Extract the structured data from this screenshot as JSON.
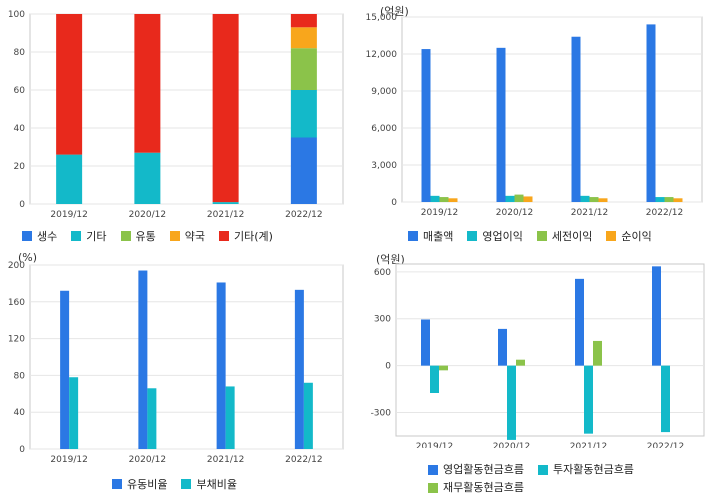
{
  "chart_data": [
    {
      "type": "bar",
      "stacked": true,
      "categories": [
        "2019/12",
        "2020/12",
        "2021/12",
        "2022/12"
      ],
      "ylim": [
        0,
        100
      ],
      "yticks": [
        0,
        20,
        40,
        60,
        80,
        100
      ],
      "unit": "",
      "series": [
        {
          "name": "생수",
          "color": "#2b78e4",
          "values": [
            0,
            0,
            0,
            35
          ]
        },
        {
          "name": "기타",
          "color": "#13b9c9",
          "values": [
            26,
            27,
            1,
            25
          ]
        },
        {
          "name": "유통",
          "color": "#8bc34a",
          "values": [
            0,
            0,
            0,
            22
          ]
        },
        {
          "name": "약국",
          "color": "#f8a61c",
          "values": [
            0,
            0,
            0,
            11
          ]
        },
        {
          "name": "기타(계)",
          "color": "#e8291c",
          "values": [
            74,
            73,
            99,
            7
          ]
        }
      ]
    },
    {
      "type": "bar",
      "categories": [
        "2019/12",
        "2020/12",
        "2021/12",
        "2022/12"
      ],
      "ylim": [
        0,
        15000
      ],
      "yticks": [
        0,
        3000,
        6000,
        9000,
        12000,
        15000
      ],
      "ytick_labels": [
        "0",
        "3,000",
        "6,000",
        "9,000",
        "12,000",
        "15,000"
      ],
      "unit": "(억원)",
      "series": [
        {
          "name": "매출액",
          "color": "#2b78e4",
          "values": [
            12400,
            12500,
            13400,
            14400
          ]
        },
        {
          "name": "영업이익",
          "color": "#13b9c9",
          "values": [
            500,
            500,
            500,
            400
          ]
        },
        {
          "name": "세전이익",
          "color": "#8bc34a",
          "values": [
            400,
            600,
            400,
            400
          ]
        },
        {
          "name": "순이익",
          "color": "#f8a61c",
          "values": [
            300,
            450,
            300,
            300
          ]
        }
      ]
    },
    {
      "type": "bar",
      "categories": [
        "2019/12",
        "2020/12",
        "2021/12",
        "2022/12"
      ],
      "ylim": [
        0,
        200
      ],
      "yticks": [
        0,
        40,
        80,
        120,
        160,
        200
      ],
      "unit": "(%)",
      "series": [
        {
          "name": "유동비율",
          "color": "#2b78e4",
          "values": [
            172,
            194,
            181,
            173
          ]
        },
        {
          "name": "부채비율",
          "color": "#13b9c9",
          "values": [
            78,
            66,
            68,
            72
          ]
        }
      ]
    },
    {
      "type": "bar",
      "categories": [
        "2019/12",
        "2020/12",
        "2021/12",
        "2022/12"
      ],
      "ylim": [
        -450,
        650
      ],
      "yticks": [
        -300,
        0,
        300,
        600
      ],
      "unit": "(억원)",
      "series": [
        {
          "name": "영업활동현금흐름",
          "color": "#2b78e4",
          "values": [
            295,
            235,
            555,
            635
          ]
        },
        {
          "name": "투자활동현금흐름",
          "color": "#13b9c9",
          "values": [
            -175,
            -475,
            -435,
            -425
          ]
        },
        {
          "name": "재무활동현금흐름",
          "color": "#8bc34a",
          "values": [
            -30,
            38,
            158,
            0
          ]
        }
      ]
    }
  ]
}
